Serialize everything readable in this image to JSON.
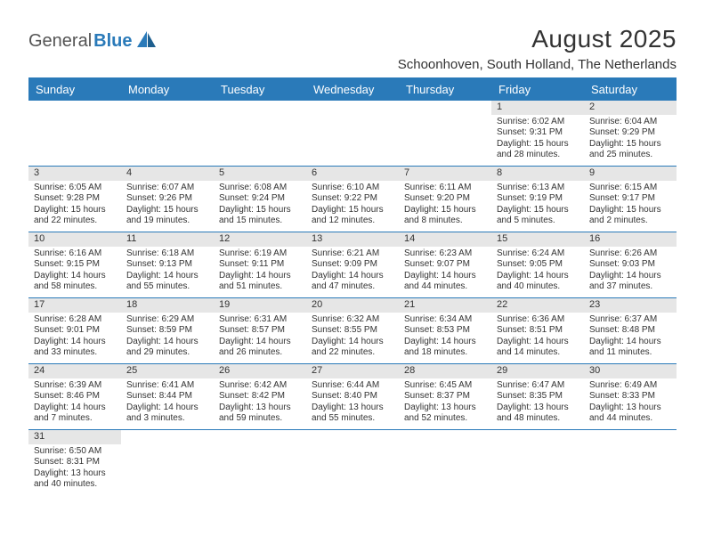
{
  "logo": {
    "word1": "General",
    "word2": "Blue",
    "sail_color": "#2a7ab9"
  },
  "header": {
    "title": "August 2025",
    "location": "Schoonhoven, South Holland, The Netherlands"
  },
  "colors": {
    "primary": "#2a7ab9",
    "daybar_bg": "#e6e6e6",
    "text": "#333333",
    "background": "#ffffff"
  },
  "calendar": {
    "day_headers": [
      "Sunday",
      "Monday",
      "Tuesday",
      "Wednesday",
      "Thursday",
      "Friday",
      "Saturday"
    ],
    "weeks": [
      [
        null,
        null,
        null,
        null,
        null,
        {
          "num": "1",
          "sunrise": "6:02 AM",
          "sunset": "9:31 PM",
          "daylight": "15 hours and 28 minutes."
        },
        {
          "num": "2",
          "sunrise": "6:04 AM",
          "sunset": "9:29 PM",
          "daylight": "15 hours and 25 minutes."
        }
      ],
      [
        {
          "num": "3",
          "sunrise": "6:05 AM",
          "sunset": "9:28 PM",
          "daylight": "15 hours and 22 minutes."
        },
        {
          "num": "4",
          "sunrise": "6:07 AM",
          "sunset": "9:26 PM",
          "daylight": "15 hours and 19 minutes."
        },
        {
          "num": "5",
          "sunrise": "6:08 AM",
          "sunset": "9:24 PM",
          "daylight": "15 hours and 15 minutes."
        },
        {
          "num": "6",
          "sunrise": "6:10 AM",
          "sunset": "9:22 PM",
          "daylight": "15 hours and 12 minutes."
        },
        {
          "num": "7",
          "sunrise": "6:11 AM",
          "sunset": "9:20 PM",
          "daylight": "15 hours and 8 minutes."
        },
        {
          "num": "8",
          "sunrise": "6:13 AM",
          "sunset": "9:19 PM",
          "daylight": "15 hours and 5 minutes."
        },
        {
          "num": "9",
          "sunrise": "6:15 AM",
          "sunset": "9:17 PM",
          "daylight": "15 hours and 2 minutes."
        }
      ],
      [
        {
          "num": "10",
          "sunrise": "6:16 AM",
          "sunset": "9:15 PM",
          "daylight": "14 hours and 58 minutes."
        },
        {
          "num": "11",
          "sunrise": "6:18 AM",
          "sunset": "9:13 PM",
          "daylight": "14 hours and 55 minutes."
        },
        {
          "num": "12",
          "sunrise": "6:19 AM",
          "sunset": "9:11 PM",
          "daylight": "14 hours and 51 minutes."
        },
        {
          "num": "13",
          "sunrise": "6:21 AM",
          "sunset": "9:09 PM",
          "daylight": "14 hours and 47 minutes."
        },
        {
          "num": "14",
          "sunrise": "6:23 AM",
          "sunset": "9:07 PM",
          "daylight": "14 hours and 44 minutes."
        },
        {
          "num": "15",
          "sunrise": "6:24 AM",
          "sunset": "9:05 PM",
          "daylight": "14 hours and 40 minutes."
        },
        {
          "num": "16",
          "sunrise": "6:26 AM",
          "sunset": "9:03 PM",
          "daylight": "14 hours and 37 minutes."
        }
      ],
      [
        {
          "num": "17",
          "sunrise": "6:28 AM",
          "sunset": "9:01 PM",
          "daylight": "14 hours and 33 minutes."
        },
        {
          "num": "18",
          "sunrise": "6:29 AM",
          "sunset": "8:59 PM",
          "daylight": "14 hours and 29 minutes."
        },
        {
          "num": "19",
          "sunrise": "6:31 AM",
          "sunset": "8:57 PM",
          "daylight": "14 hours and 26 minutes."
        },
        {
          "num": "20",
          "sunrise": "6:32 AM",
          "sunset": "8:55 PM",
          "daylight": "14 hours and 22 minutes."
        },
        {
          "num": "21",
          "sunrise": "6:34 AM",
          "sunset": "8:53 PM",
          "daylight": "14 hours and 18 minutes."
        },
        {
          "num": "22",
          "sunrise": "6:36 AM",
          "sunset": "8:51 PM",
          "daylight": "14 hours and 14 minutes."
        },
        {
          "num": "23",
          "sunrise": "6:37 AM",
          "sunset": "8:48 PM",
          "daylight": "14 hours and 11 minutes."
        }
      ],
      [
        {
          "num": "24",
          "sunrise": "6:39 AM",
          "sunset": "8:46 PM",
          "daylight": "14 hours and 7 minutes."
        },
        {
          "num": "25",
          "sunrise": "6:41 AM",
          "sunset": "8:44 PM",
          "daylight": "14 hours and 3 minutes."
        },
        {
          "num": "26",
          "sunrise": "6:42 AM",
          "sunset": "8:42 PM",
          "daylight": "13 hours and 59 minutes."
        },
        {
          "num": "27",
          "sunrise": "6:44 AM",
          "sunset": "8:40 PM",
          "daylight": "13 hours and 55 minutes."
        },
        {
          "num": "28",
          "sunrise": "6:45 AM",
          "sunset": "8:37 PM",
          "daylight": "13 hours and 52 minutes."
        },
        {
          "num": "29",
          "sunrise": "6:47 AM",
          "sunset": "8:35 PM",
          "daylight": "13 hours and 48 minutes."
        },
        {
          "num": "30",
          "sunrise": "6:49 AM",
          "sunset": "8:33 PM",
          "daylight": "13 hours and 44 minutes."
        }
      ],
      [
        {
          "num": "31",
          "sunrise": "6:50 AM",
          "sunset": "8:31 PM",
          "daylight": "13 hours and 40 minutes."
        },
        null,
        null,
        null,
        null,
        null,
        null
      ]
    ],
    "labels": {
      "sunrise": "Sunrise:",
      "sunset": "Sunset:",
      "daylight": "Daylight:"
    }
  }
}
